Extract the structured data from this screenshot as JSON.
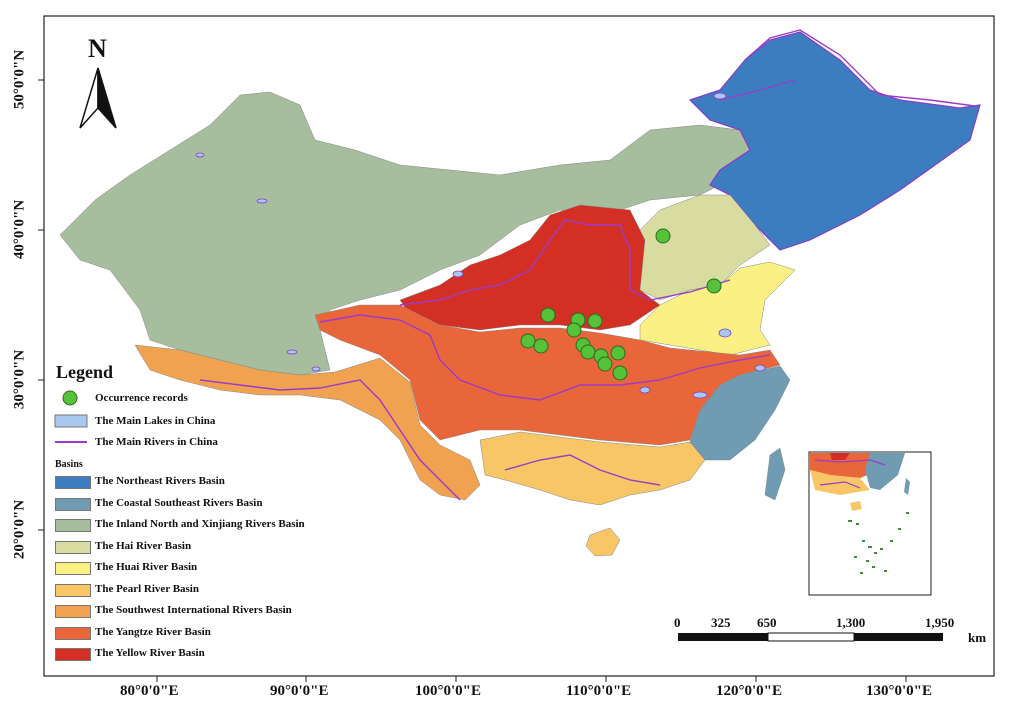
{
  "north_arrow": {
    "label": "N"
  },
  "axes": {
    "x_labels": [
      "80°0'0\"E",
      "90°0'0\"E",
      "100°0'0\"E",
      "110°0'0\"E",
      "120°0'0\"E",
      "130°0'0\"E"
    ],
    "y_labels": [
      "50°0'0\"N",
      "40°0'0\"N",
      "30°0'0\"N",
      "20°0'0\"N"
    ]
  },
  "legend": {
    "title": "Legend",
    "occurrence": "Occurrence records",
    "lakes": "The Main Lakes in China",
    "rivers": "The Main Rivers in China",
    "basins_heading": "Basins",
    "basins": [
      {
        "label": "The Northeast Rivers Basin",
        "color": "#3b7dbf"
      },
      {
        "label": "The Coastal Southeast Rivers Basin",
        "color": "#6f9bb3"
      },
      {
        "label": "The Inland North and Xinjiang Rivers Basin",
        "color": "#a6bd9e"
      },
      {
        "label": "The Hai River Basin",
        "color": "#d9dca0"
      },
      {
        "label": "The Huai River Basin",
        "color": "#fbf084"
      },
      {
        "label": "The Pearl River Basin",
        "color": "#f8c667"
      },
      {
        "label": "The Southwest International Rivers Basin",
        "color": "#f0a250"
      },
      {
        "label": "The Yangtze River Basin",
        "color": "#e8663a"
      },
      {
        "label": "The Yellow River Basin",
        "color": "#d42f24"
      }
    ]
  },
  "scale_bar": {
    "ticks": [
      "0",
      "325",
      "650",
      "1,300",
      "1,950"
    ],
    "unit": "km"
  },
  "colors": {
    "lake": "#a9c8ef",
    "river": "#9b3bc8",
    "occurrence": "#55c23a"
  }
}
